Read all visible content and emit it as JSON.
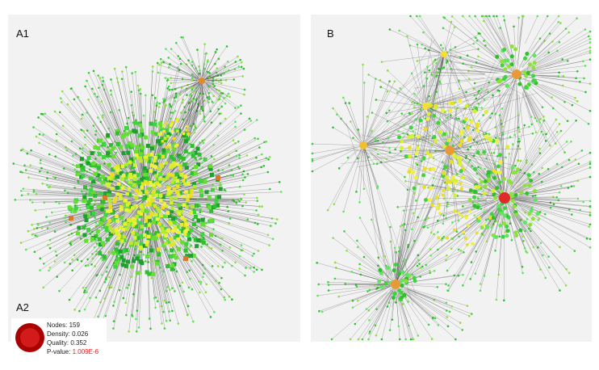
{
  "panels": [
    {
      "label": "A1"
    },
    {
      "label": "B"
    }
  ],
  "inset": {
    "label": "A2",
    "nodes": "Nodes: 159",
    "density": "Density: 0.026",
    "quality": "Quality: 0.352",
    "pvalue": {
      "label": "P-value:",
      "value": "1.009E-6"
    }
  }
}
